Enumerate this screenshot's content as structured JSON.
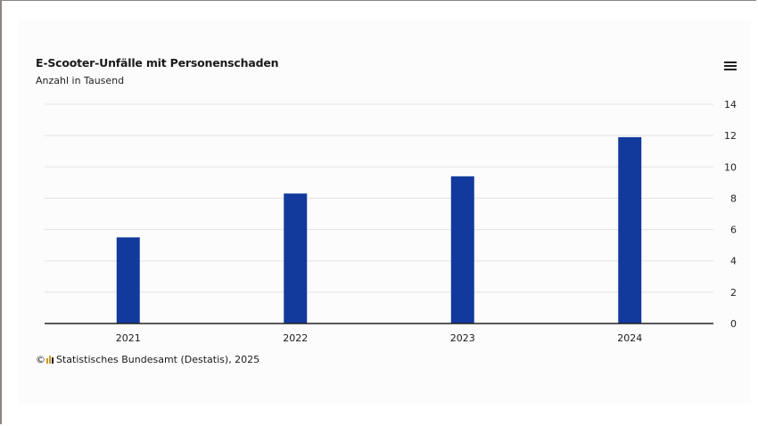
{
  "header": {
    "title": "E-Scooter-Unfälle mit Personenschaden",
    "subtitle": "Anzahl in Tausend",
    "menu_icon": "hamburger-menu-icon"
  },
  "footer": {
    "copyright_symbol": "©",
    "source_text": "Statistisches Bundesamt (Destatis), 2025"
  },
  "colors": {
    "bar": "#123a9c",
    "grid": "#e3e3e3",
    "axis": "#222222"
  },
  "chart_data": {
    "type": "bar",
    "categories": [
      "2021",
      "2022",
      "2023",
      "2024"
    ],
    "values": [
      5.5,
      8.3,
      9.4,
      11.9
    ],
    "title": "E-Scooter-Unfälle mit Personenschaden",
    "subtitle": "Anzahl in Tausend",
    "ylim": [
      0,
      14
    ],
    "yticks": [
      0,
      2,
      4,
      6,
      8,
      10,
      12,
      14
    ],
    "yaxis_position": "right",
    "grid": true,
    "legend": "none"
  }
}
